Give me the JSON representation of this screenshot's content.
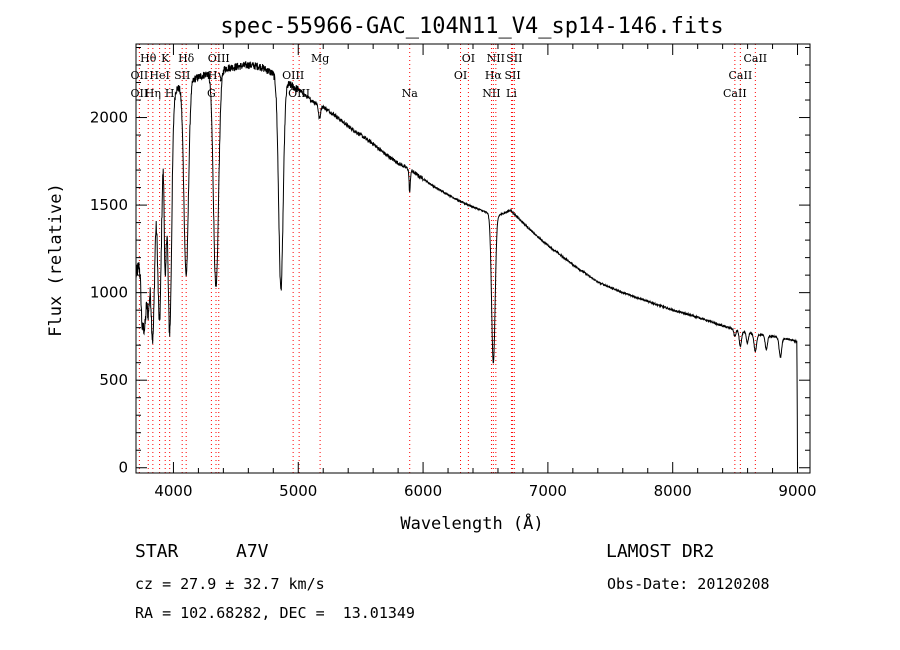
{
  "chart_data": {
    "type": "line",
    "title": "spec-55966-GAC_104N11_V4_sp14-146.fits",
    "xlabel": "Wavelength (Å)",
    "ylabel": "Flux (relative)",
    "xlim": [
      3700,
      9100
    ],
    "ylim": [
      -30,
      2420
    ],
    "xticks": [
      4000,
      5000,
      6000,
      7000,
      8000,
      9000
    ],
    "yticks": [
      0,
      500,
      1000,
      1500,
      2000
    ],
    "grid": false,
    "continuum": {
      "x": [
        3700,
        3800,
        3900,
        4000,
        4100,
        4200,
        4300,
        4400,
        4500,
        4600,
        4700,
        4800,
        4900,
        5000,
        5100,
        5200,
        5300,
        5400,
        5500,
        5600,
        5700,
        5800,
        5900,
        6000,
        6100,
        6200,
        6300,
        6400,
        6500,
        6600,
        6700,
        6800,
        6900,
        7000,
        7200,
        7400,
        7600,
        7800,
        8000,
        8200,
        8400,
        8600,
        8800,
        8950,
        8995,
        9000
      ],
      "y": [
        1100,
        1350,
        1900,
        2150,
        2200,
        2230,
        2260,
        2280,
        2290,
        2300,
        2290,
        2250,
        2200,
        2160,
        2100,
        2060,
        2010,
        1950,
        1900,
        1850,
        1790,
        1740,
        1700,
        1650,
        1600,
        1560,
        1520,
        1490,
        1460,
        1440,
        1470,
        1400,
        1330,
        1270,
        1160,
        1060,
        1000,
        950,
        900,
        860,
        810,
        770,
        750,
        730,
        720,
        0
      ]
    },
    "absorption_features": [
      {
        "center": 3750,
        "depth": 380,
        "width": 10
      },
      {
        "center": 3771,
        "depth": 400,
        "width": 10
      },
      {
        "center": 3798,
        "depth": 430,
        "width": 12
      },
      {
        "center": 3835,
        "depth": 800,
        "width": 14
      },
      {
        "center": 3889,
        "depth": 1000,
        "width": 15
      },
      {
        "center": 3934,
        "depth": 800,
        "width": 8
      },
      {
        "center": 3970,
        "depth": 1300,
        "width": 16
      },
      {
        "center": 4102,
        "depth": 1100,
        "width": 18
      },
      {
        "center": 4341,
        "depth": 1250,
        "width": 20
      },
      {
        "center": 4861,
        "depth": 1200,
        "width": 18
      },
      {
        "center": 5170,
        "depth": 80,
        "width": 8
      },
      {
        "center": 5893,
        "depth": 130,
        "width": 5
      },
      {
        "center": 6563,
        "depth": 850,
        "width": 14
      },
      {
        "center": 8498,
        "depth": 40,
        "width": 8
      },
      {
        "center": 8542,
        "depth": 90,
        "width": 9
      },
      {
        "center": 8598,
        "depth": 60,
        "width": 8
      },
      {
        "center": 8662,
        "depth": 100,
        "width": 10
      },
      {
        "center": 8750,
        "depth": 80,
        "width": 9
      },
      {
        "center": 8863,
        "depth": 110,
        "width": 10
      }
    ],
    "line_markers": [
      {
        "label": "Hθ",
        "wavelength": 3798,
        "row": 1
      },
      {
        "label": "K",
        "wavelength": 3934,
        "row": 1
      },
      {
        "label": "Hδ",
        "wavelength": 4102,
        "row": 1
      },
      {
        "label": "OIII",
        "wavelength": 4363,
        "row": 1
      },
      {
        "label": "Mg",
        "wavelength": 5175,
        "row": 1
      },
      {
        "label": "OI",
        "wavelength": 6363,
        "row": 1
      },
      {
        "label": "NII",
        "wavelength": 6583,
        "row": 1
      },
      {
        "label": "SII",
        "wavelength": 6731,
        "row": 1
      },
      {
        "label": "CaII",
        "wavelength": 8662,
        "row": 1
      },
      {
        "label": "OII",
        "wavelength": 3727,
        "row": 2
      },
      {
        "label": "HeI",
        "wavelength": 3889,
        "row": 2
      },
      {
        "label": "SII",
        "wavelength": 4070,
        "row": 2
      },
      {
        "label": "Hγ",
        "wavelength": 4341,
        "row": 2
      },
      {
        "label": "OIII",
        "wavelength": 4959,
        "row": 2
      },
      {
        "label": "OI",
        "wavelength": 6300,
        "row": 2
      },
      {
        "label": "Hα",
        "wavelength": 6563,
        "row": 2
      },
      {
        "label": "SII",
        "wavelength": 6717,
        "row": 2
      },
      {
        "label": "CaII",
        "wavelength": 8542,
        "row": 2
      },
      {
        "label": "OII",
        "wavelength": 3727,
        "row": 3
      },
      {
        "label": "Hη",
        "wavelength": 3835,
        "row": 3
      },
      {
        "label": "H",
        "wavelength": 3970,
        "row": 3
      },
      {
        "label": "G",
        "wavelength": 4304,
        "row": 3
      },
      {
        "label": "OIII",
        "wavelength": 5007,
        "row": 3
      },
      {
        "label": "Na",
        "wavelength": 5893,
        "row": 3
      },
      {
        "label": "NII",
        "wavelength": 6548,
        "row": 3
      },
      {
        "label": "Li",
        "wavelength": 6708,
        "row": 3
      },
      {
        "label": "CaII",
        "wavelength": 8498,
        "row": 3
      }
    ],
    "colors": {
      "spectrum": "#000000",
      "marker": "#ff0000"
    }
  },
  "info": {
    "object_class": "STAR",
    "subclass": "A7V",
    "survey": "LAMOST DR2",
    "redshift": "cz = 27.9 ± 32.7 km/s",
    "obs_date": "Obs-Date: 20120208",
    "coords": "RA = 102.68282, DEC =  13.01349"
  }
}
